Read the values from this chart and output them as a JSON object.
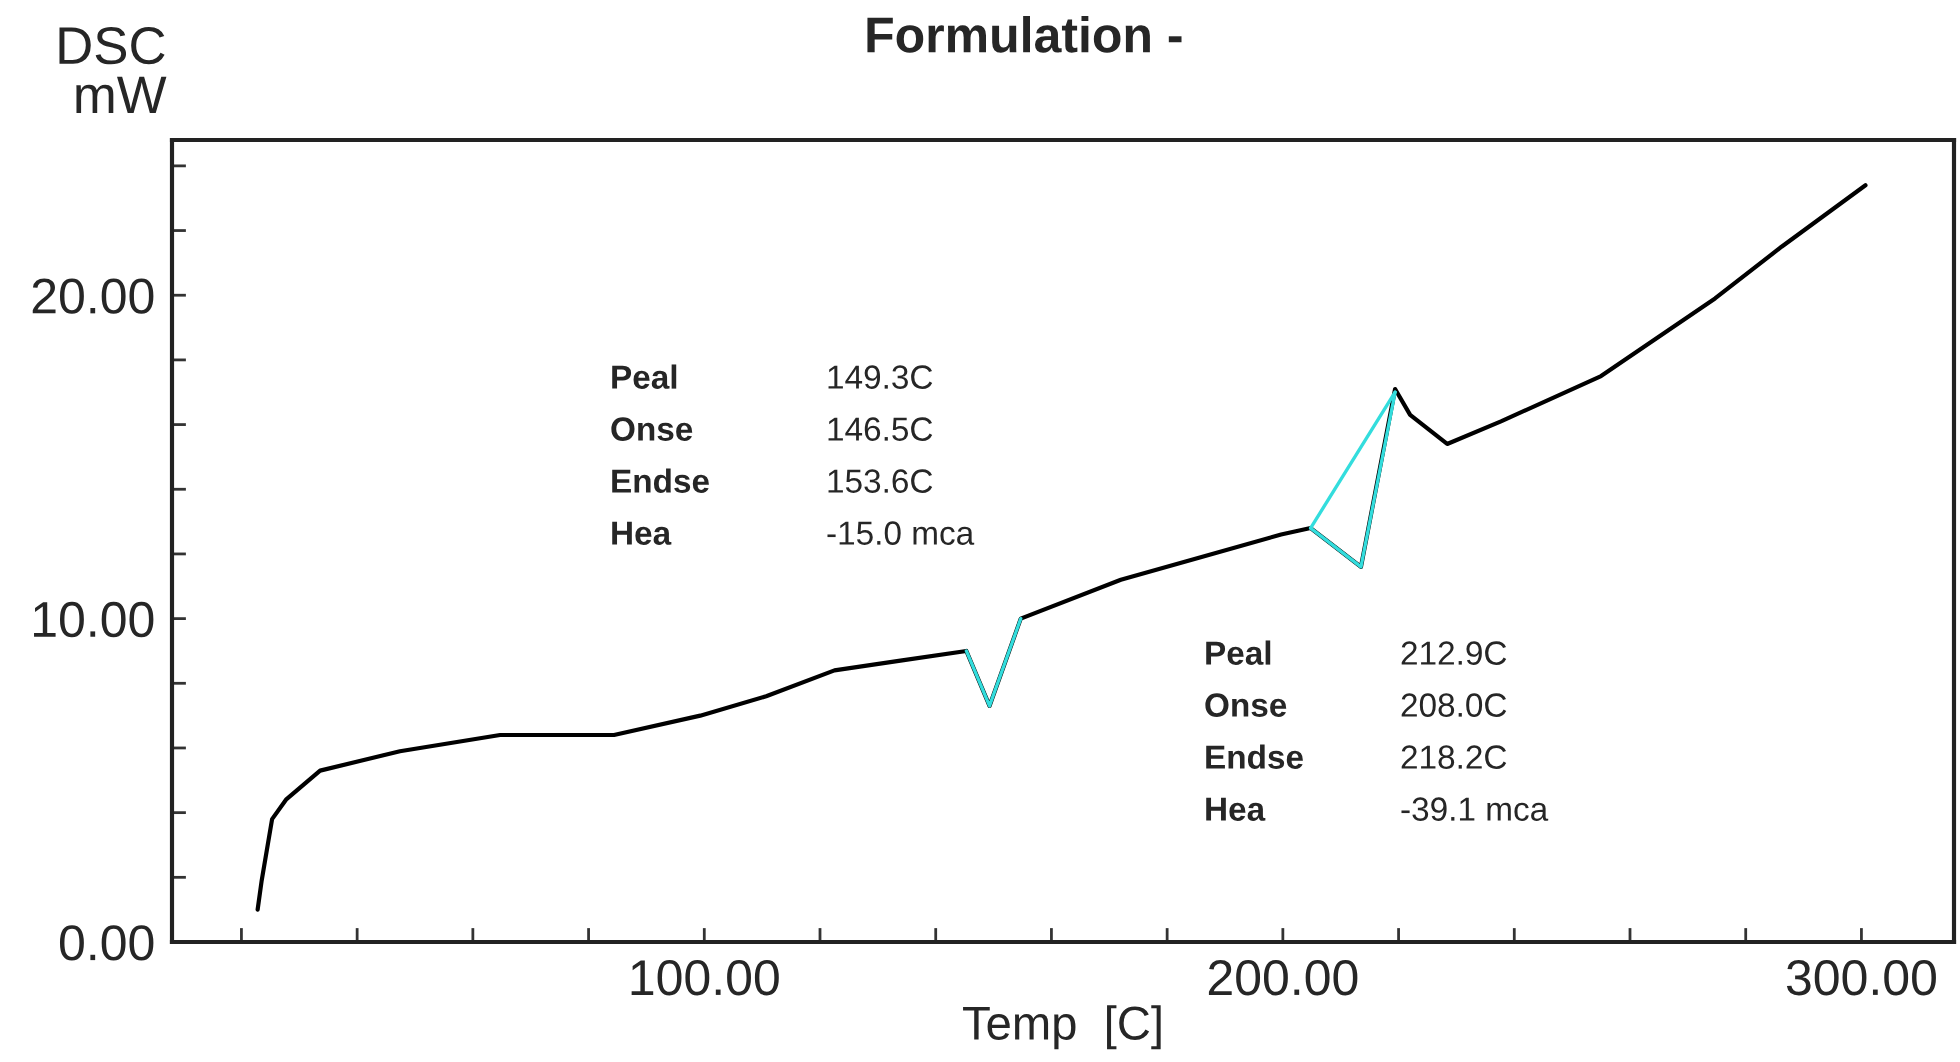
{
  "chart_data": {
    "type": "line",
    "title": "Formulation -",
    "xlabel": "Temp  [C]",
    "ylabel": "DSC\nmW",
    "xlim": [
      8,
      316
    ],
    "ylim": [
      0,
      24.8
    ],
    "xticks": [
      {
        "value": 20,
        "label": null
      },
      {
        "value": 40,
        "label": null
      },
      {
        "value": 60,
        "label": null
      },
      {
        "value": 80,
        "label": null
      },
      {
        "value": 100,
        "label": "100.00"
      },
      {
        "value": 120,
        "label": null
      },
      {
        "value": 140,
        "label": null
      },
      {
        "value": 160,
        "label": null
      },
      {
        "value": 180,
        "label": null
      },
      {
        "value": 200,
        "label": "200.00"
      },
      {
        "value": 220,
        "label": null
      },
      {
        "value": 240,
        "label": null
      },
      {
        "value": 260,
        "label": null
      },
      {
        "value": 280,
        "label": null
      },
      {
        "value": 300,
        "label": "300.00"
      }
    ],
    "yticks": [
      {
        "value": 0,
        "label": "0.00"
      },
      {
        "value": 2,
        "label": null
      },
      {
        "value": 4,
        "label": null
      },
      {
        "value": 6,
        "label": null
      },
      {
        "value": 8,
        "label": null
      },
      {
        "value": 10,
        "label": "10.00"
      },
      {
        "value": 12,
        "label": null
      },
      {
        "value": 14,
        "label": null
      },
      {
        "value": 16,
        "label": null
      },
      {
        "value": 18,
        "label": null
      },
      {
        "value": 20,
        "label": "20.00"
      },
      {
        "value": 22,
        "label": null
      },
      {
        "value": 24,
        "label": null
      }
    ],
    "grid": false,
    "legend": false,
    "marker": "none",
    "line_style": "solid",
    "series": [
      {
        "color": "#000000",
        "x": [
          22.8,
          23.5,
          25.3,
          27.7,
          33.6,
          47.4,
          64.7,
          84.4,
          99.3,
          110.7,
          122.5,
          133.9,
          145.3,
          149.3,
          154.7,
          172,
          185.8,
          199.7,
          204.8,
          213.5,
          219.4,
          222,
          228.4,
          237.7,
          255,
          274.7,
          286.2,
          300.7
        ],
        "values": [
          1.0,
          1.9,
          3.8,
          4.4,
          5.3,
          5.9,
          6.4,
          6.4,
          7.0,
          7.6,
          8.4,
          8.7,
          9.0,
          7.3,
          10.0,
          11.2,
          11.9,
          12.6,
          12.8,
          11.6,
          17.1,
          16.3,
          15.4,
          16.1,
          17.5,
          19.9,
          21.5,
          23.4
        ]
      },
      {
        "color": "#33dddd",
        "x": [
          145.3,
          149.3,
          154.7
        ],
        "values": [
          9.0,
          7.3,
          10.0
        ]
      },
      {
        "color": "#33dddd",
        "x": [
          204.8,
          213.5,
          219.4
        ],
        "values": [
          12.8,
          11.6,
          17.0
        ]
      },
      {
        "color": "#33dddd",
        "x": [
          204.8,
          219.4
        ],
        "values": [
          12.8,
          17.0
        ]
      }
    ],
    "annotations": [
      "Peal",
      "149.3C",
      "Onse",
      "146.5C",
      "Endse",
      "153.6C",
      "Hea",
      "-15.0 mca",
      "Peal",
      "212.9C",
      "Onse",
      "208.0C",
      "Endse",
      "218.2C",
      "Hea",
      "-39.1 mca"
    ]
  }
}
